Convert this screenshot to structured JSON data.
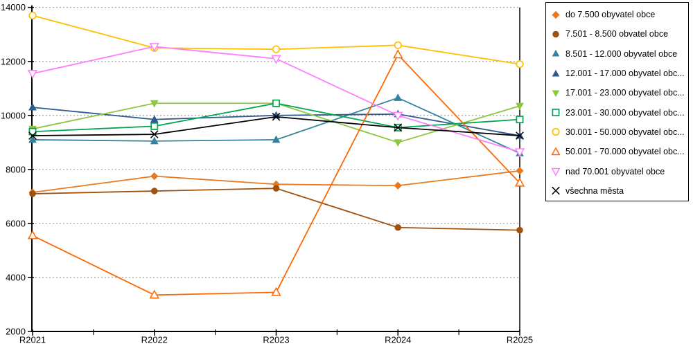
{
  "chart_data": {
    "type": "line",
    "title": "",
    "xlabel": "",
    "ylabel": "",
    "categories": [
      "R2021",
      "R2022",
      "R2023",
      "R2024",
      "R2025"
    ],
    "y_axis": {
      "min": 2000,
      "max": 14000,
      "step": 2000,
      "tick_labels": [
        "2000",
        "4000",
        "6000",
        "8000",
        "10000",
        "12000",
        "14000"
      ]
    },
    "grid": true,
    "grid_color": "#a6a6a6",
    "legend_position": "right",
    "series": [
      {
        "name": "do 7.500 obyvatel obce",
        "legend_label": "do 7.500 obyvatel obce",
        "marker": "diamond",
        "filled": true,
        "color": "#E8791E",
        "values": [
          7150,
          7750,
          7450,
          7400,
          7950
        ]
      },
      {
        "name": "7.501 - 8.500 obvatel obce",
        "legend_label": "7.501 - 8.500 obvatel obce",
        "marker": "circle",
        "filled": true,
        "color": "#A0510F",
        "values": [
          7100,
          7200,
          7300,
          5850,
          5750
        ]
      },
      {
        "name": "8.501 - 12.000 obyvatel obce",
        "legend_label": "8.501 - 12.000 obyvatel obce",
        "marker": "triangle-up",
        "filled": true,
        "color": "#31849B",
        "values": [
          9100,
          9050,
          9100,
          10650,
          8600
        ]
      },
      {
        "name": "12.001 - 17.000 obyvatel obc...",
        "legend_label": "12.001 - 17.000 obyvatel obc...",
        "marker": "triangle-up",
        "filled": true,
        "color": "#2E5B8F",
        "values": [
          10300,
          9850,
          10000,
          10050,
          9250
        ]
      },
      {
        "name": "17.001 - 23.000 obyvatel obc...",
        "legend_label": "17.001 - 23.000 obyvatel obc...",
        "marker": "triangle-down",
        "filled": true,
        "color": "#8DC63F",
        "values": [
          9500,
          10450,
          10450,
          9000,
          10350
        ]
      },
      {
        "name": "23.001 - 30.000 obyvatel obc...",
        "legend_label": "23.001 - 30.000 obyvatel obc...",
        "marker": "square",
        "filled": false,
        "color": "#00A550",
        "values": [
          9400,
          9600,
          10450,
          9550,
          9850
        ]
      },
      {
        "name": "30.001 - 50.000 obyvatel obc...",
        "legend_label": "30.001 - 50.000 obyvatel obc...",
        "marker": "circle",
        "filled": false,
        "color": "#FFC000",
        "values": [
          13700,
          12500,
          12450,
          12600,
          11900
        ]
      },
      {
        "name": "50.001 - 70.000 obyvatel obc...",
        "legend_label": "50.001 - 70.000 obyvatel obc...",
        "marker": "triangle-up",
        "filled": false,
        "color": "#FF6600",
        "values": [
          5550,
          3350,
          3450,
          12250,
          7500
        ]
      },
      {
        "name": "nad 70.001 obyvatel obce",
        "legend_label": "nad 70.001 obyvatel obce",
        "marker": "triangle-down",
        "filled": false,
        "color": "#FF7DFF",
        "values": [
          11550,
          12550,
          12100,
          10000,
          8650
        ]
      },
      {
        "name": "všechna města",
        "legend_label": "všechna města",
        "marker": "x",
        "filled": false,
        "color": "#000000",
        "values": [
          9250,
          9300,
          9950,
          9550,
          9250
        ]
      }
    ]
  }
}
